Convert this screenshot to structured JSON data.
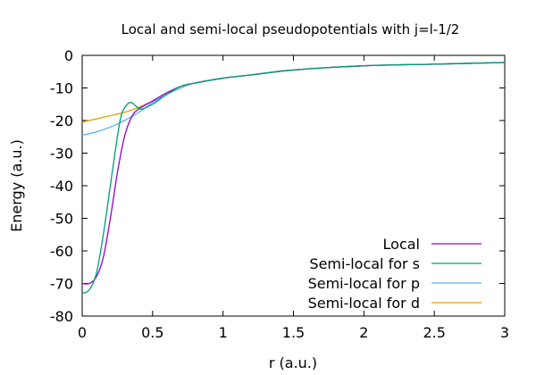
{
  "chart_data": {
    "type": "line",
    "title": "Local and semi-local pseudopotentials with j=l-1/2",
    "xlabel": "r (a.u.)",
    "ylabel": "Energy (a.u.)",
    "xlim": [
      0,
      3
    ],
    "ylim": [
      -80,
      0
    ],
    "xticks": [
      0,
      0.5,
      1,
      1.5,
      2,
      2.5,
      3
    ],
    "xtick_labels": [
      "0",
      "0.5",
      "1",
      "1.5",
      "2",
      "2.5",
      "3"
    ],
    "yticks": [
      0,
      -10,
      -20,
      -30,
      -40,
      -50,
      -60,
      -70,
      -80
    ],
    "ytick_labels": [
      "0",
      "-10",
      "-20",
      "-30",
      "-40",
      "-50",
      "-60",
      "-70",
      "-80"
    ],
    "grid": false,
    "legend_position": "bottom-right",
    "series": [
      {
        "name": "Local",
        "color": "#9400d3",
        "x": [
          0,
          0.05,
          0.1,
          0.15,
          0.2,
          0.25,
          0.3,
          0.35,
          0.4,
          0.5,
          0.6,
          0.7,
          0.8,
          1.0,
          1.2,
          1.5,
          2.0,
          2.5,
          3.0
        ],
        "y": [
          -70,
          -70,
          -68,
          -62,
          -50,
          -36,
          -25,
          -19,
          -16.5,
          -14,
          -11.5,
          -9.5,
          -8.5,
          -7,
          -6,
          -4.5,
          -3.2,
          -2.7,
          -2.2
        ]
      },
      {
        "name": "Semi-local for s",
        "color": "#009e73",
        "x": [
          0,
          0.05,
          0.1,
          0.15,
          0.2,
          0.25,
          0.28,
          0.32,
          0.35,
          0.38,
          0.42,
          0.5,
          0.6,
          0.7,
          0.8,
          1.0,
          1.2,
          1.5,
          2.0,
          2.5,
          3.0
        ],
        "y": [
          -73,
          -72,
          -67,
          -55,
          -40,
          -25,
          -18,
          -15,
          -14.5,
          -15.5,
          -16.5,
          -15,
          -12,
          -9.5,
          -8.5,
          -7,
          -6,
          -4.5,
          -3.2,
          -2.7,
          -2.2
        ]
      },
      {
        "name": "Semi-local for p",
        "color": "#56b4e9",
        "x": [
          0,
          0.1,
          0.2,
          0.3,
          0.4,
          0.5,
          0.6,
          0.7,
          0.8,
          1.0,
          1.2,
          1.5,
          2.0,
          2.5,
          3.0
        ],
        "y": [
          -24.5,
          -23.5,
          -22,
          -20,
          -17.5,
          -14.5,
          -12,
          -10,
          -8.5,
          -7,
          -6,
          -4.5,
          -3.2,
          -2.7,
          -2.2
        ]
      },
      {
        "name": "Semi-local for d",
        "color": "#e69f00",
        "x": [
          0,
          0.1,
          0.2,
          0.3,
          0.4,
          0.5,
          0.6,
          0.7,
          0.8,
          1.0,
          1.2,
          1.5,
          2.0,
          2.5,
          3.0
        ],
        "y": [
          -20.5,
          -19.5,
          -18.5,
          -17.5,
          -16,
          -14,
          -11.5,
          -9.5,
          -8.5,
          -7,
          -6,
          -4.5,
          -3.2,
          -2.7,
          -2.2
        ]
      }
    ]
  }
}
